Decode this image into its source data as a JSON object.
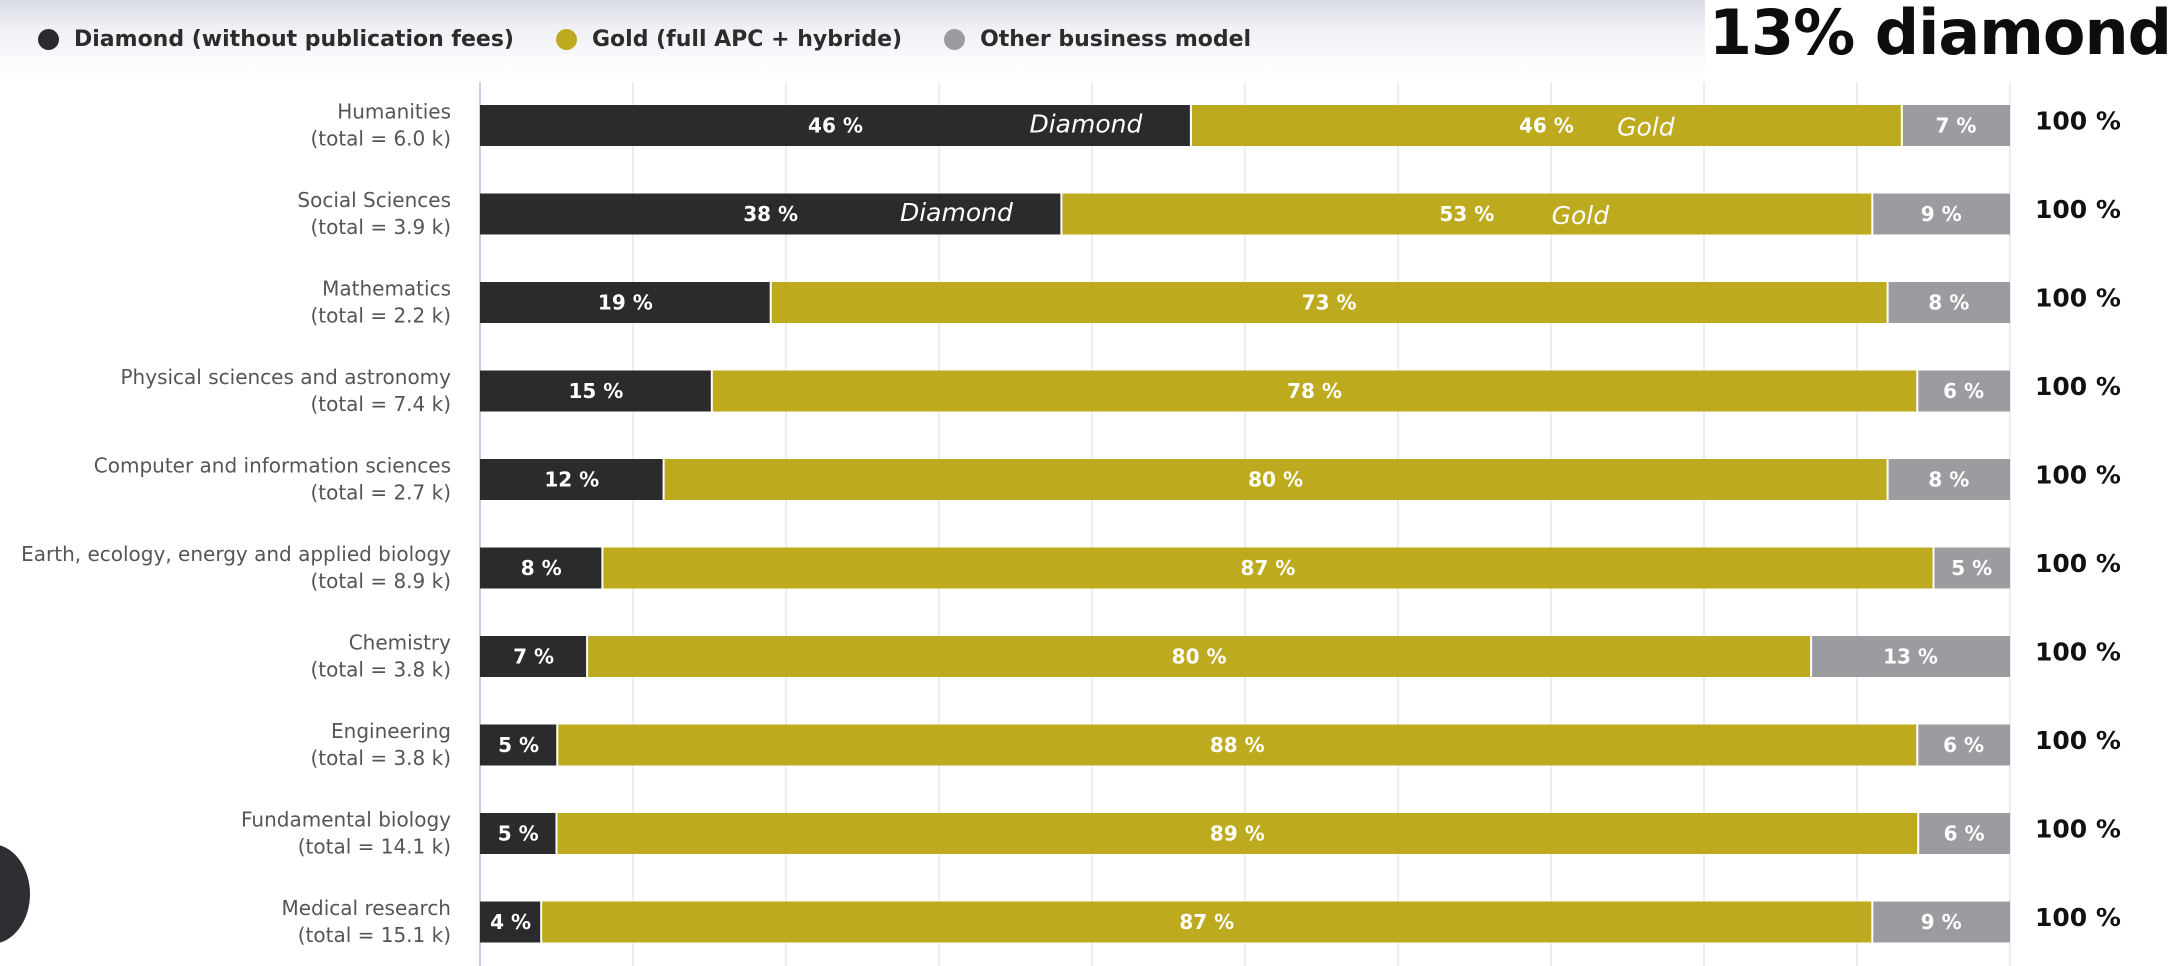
{
  "headline": "13% diamond",
  "legend": [
    {
      "label": "Diamond (without publication fees)",
      "color": "#2b2a2d"
    },
    {
      "label": "Gold (full APC + hybride)",
      "color": "#beaa1e"
    },
    {
      "label": "Other business model",
      "color": "#9c9ca0"
    }
  ],
  "chart_data": {
    "type": "bar",
    "orientation": "horizontal",
    "stacked": true,
    "grid": true,
    "categories": [
      {
        "name": "Humanities",
        "total": "(total = 6.0 k)"
      },
      {
        "name": "Social Sciences",
        "total": "(total = 3.9 k)"
      },
      {
        "name": "Mathematics",
        "total": "(total = 2.2 k)"
      },
      {
        "name": "Physical sciences and astronomy",
        "total": "(total = 7.4 k)"
      },
      {
        "name": "Computer and information sciences",
        "total": "(total = 2.7 k)"
      },
      {
        "name": "Earth, ecology, energy and applied biology",
        "total": "(total = 8.9 k)"
      },
      {
        "name": "Chemistry",
        "total": "(total = 3.8 k)"
      },
      {
        "name": "Engineering",
        "total": "(total = 3.8 k)"
      },
      {
        "name": "Fundamental biology",
        "total": "(total = 14.1 k)"
      },
      {
        "name": "Medical research",
        "total": "(total = 15.1 k)"
      }
    ],
    "series": [
      {
        "name": "Diamond (without publication fees)",
        "color": "#2b2a2d",
        "values": [
          46,
          38,
          19,
          15,
          12,
          8,
          7,
          5,
          5,
          4
        ]
      },
      {
        "name": "Gold (full APC + hybride)",
        "color": "#beaa1e",
        "values": [
          46,
          53,
          73,
          78,
          80,
          87,
          80,
          88,
          89,
          87
        ]
      },
      {
        "name": "Other business model",
        "color": "#9c9ca0",
        "values": [
          7,
          9,
          8,
          6,
          8,
          5,
          13,
          6,
          6,
          9
        ]
      }
    ],
    "row_total_label": "100 %",
    "annotations": [
      {
        "row": 0,
        "series": 0,
        "text": "Diamond"
      },
      {
        "row": 0,
        "series": 1,
        "text": "Gold"
      },
      {
        "row": 1,
        "series": 0,
        "text": "Diamond"
      },
      {
        "row": 1,
        "series": 1,
        "text": "Gold"
      }
    ]
  }
}
